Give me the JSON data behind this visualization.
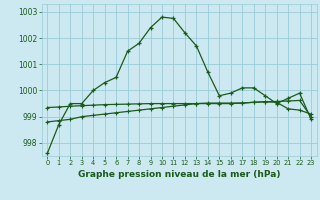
{
  "title": "Graphe pression niveau de la mer (hPa)",
  "background_color": "#cce8f0",
  "grid_color": "#99ccd9",
  "line_color": "#1a5c1a",
  "xlim": [
    -0.5,
    23.5
  ],
  "ylim": [
    997.5,
    1003.3
  ],
  "yticks": [
    998,
    999,
    1000,
    1001,
    1002,
    1003
  ],
  "xticks": [
    0,
    1,
    2,
    3,
    4,
    5,
    6,
    7,
    8,
    9,
    10,
    11,
    12,
    13,
    14,
    15,
    16,
    17,
    18,
    19,
    20,
    21,
    22,
    23
  ],
  "series1": [
    997.6,
    998.7,
    999.5,
    999.5,
    1000.0,
    1000.3,
    1000.5,
    1001.5,
    1001.8,
    1002.4,
    1002.8,
    1002.75,
    1002.2,
    1001.7,
    1000.7,
    999.8,
    999.9,
    1000.1,
    1000.1,
    999.8,
    999.5,
    999.7,
    999.9,
    998.9
  ],
  "series2": [
    998.8,
    998.85,
    998.9,
    999.0,
    999.05,
    999.1,
    999.15,
    999.2,
    999.25,
    999.3,
    999.35,
    999.4,
    999.45,
    999.5,
    999.52,
    999.52,
    999.52,
    999.52,
    999.55,
    999.57,
    999.55,
    999.3,
    999.25,
    999.1
  ],
  "series3": [
    999.35,
    999.37,
    999.4,
    999.42,
    999.44,
    999.46,
    999.47,
    999.48,
    999.49,
    999.5,
    999.5,
    999.5,
    999.5,
    999.5,
    999.5,
    999.5,
    999.5,
    999.52,
    999.55,
    999.57,
    999.58,
    999.6,
    999.62,
    999.0
  ]
}
